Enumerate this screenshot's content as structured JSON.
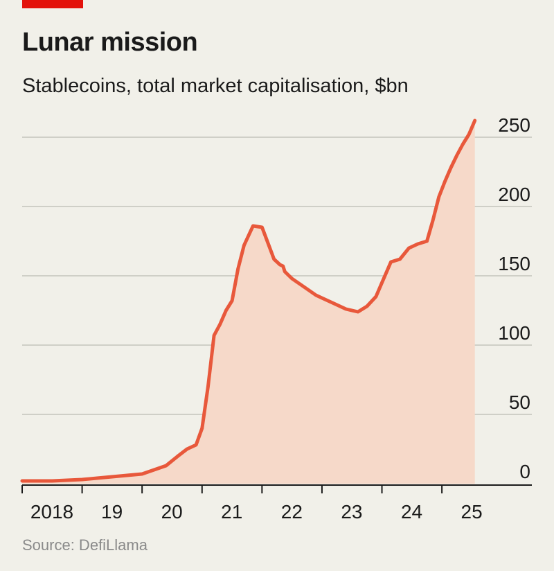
{
  "title": "Lunar mission",
  "subtitle": "Stablecoins, total market capitalisation, $bn",
  "source": "Source: DefiLlama",
  "colors": {
    "accent": "#e3120b",
    "line": "#e8583b",
    "area": "#f6d9c9",
    "grid": "#cfcfc7",
    "axis": "#1a1a1a"
  },
  "chart_data": {
    "type": "area",
    "title": "Lunar mission",
    "subtitle": "Stablecoins, total market capitalisation, $bn",
    "xlabel": "",
    "ylabel": "",
    "ylim": [
      0,
      250
    ],
    "xlim": [
      2018,
      2025.6
    ],
    "grid": true,
    "y_ticks": [
      {
        "value": 0,
        "label": "0"
      },
      {
        "value": 50,
        "label": "50"
      },
      {
        "value": 100,
        "label": "100"
      },
      {
        "value": 150,
        "label": "150"
      },
      {
        "value": 200,
        "label": "200"
      },
      {
        "value": 250,
        "label": "250"
      }
    ],
    "x_ticks": [
      {
        "value": 2018,
        "label": "2018"
      },
      {
        "value": 2019,
        "label": "19"
      },
      {
        "value": 2020,
        "label": "20"
      },
      {
        "value": 2021,
        "label": "21"
      },
      {
        "value": 2022,
        "label": "22"
      },
      {
        "value": 2023,
        "label": "23"
      },
      {
        "value": 2024,
        "label": "24"
      },
      {
        "value": 2025,
        "label": "25"
      }
    ],
    "x": [
      2018.0,
      2018.5,
      2019.0,
      2019.25,
      2019.5,
      2019.75,
      2020.0,
      2020.2,
      2020.4,
      2020.6,
      2020.75,
      2020.9,
      2021.0,
      2021.1,
      2021.2,
      2021.3,
      2021.4,
      2021.5,
      2021.6,
      2021.7,
      2021.85,
      2022.0,
      2022.2,
      2022.3,
      2022.35,
      2022.38,
      2022.5,
      2022.7,
      2022.9,
      2023.0,
      2023.2,
      2023.4,
      2023.6,
      2023.75,
      2023.9,
      2024.0,
      2024.15,
      2024.3,
      2024.45,
      2024.6,
      2024.75,
      2024.85,
      2024.95,
      2025.05,
      2025.15,
      2025.25,
      2025.35,
      2025.45,
      2025.55
    ],
    "values": [
      2,
      2,
      3,
      4,
      5,
      6,
      7,
      10,
      13,
      20,
      25,
      28,
      40,
      70,
      107,
      115,
      125,
      132,
      155,
      172,
      186,
      185,
      162,
      158,
      157,
      153,
      148,
      142,
      136,
      134,
      130,
      126,
      124,
      128,
      135,
      145,
      160,
      162,
      170,
      173,
      175,
      190,
      207,
      218,
      228,
      237,
      245,
      252,
      262
    ]
  }
}
